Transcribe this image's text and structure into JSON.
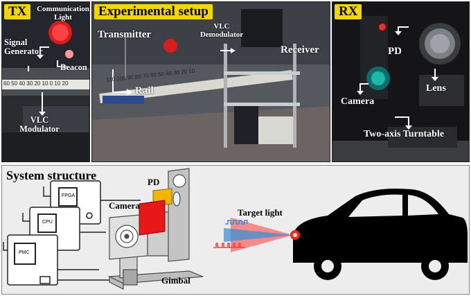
{
  "colors": {
    "tag_bg": "#f2d600",
    "target_light": "#ff2020",
    "signal_blue": "#2f8fd8",
    "signal_red": "#ff3b3b",
    "camera_red": "#e81818",
    "pd_yellow": "#f5b400"
  },
  "tx": {
    "tag": "TX",
    "communication_light": "Communication Light",
    "signal_generator": "Signal Generator",
    "beacon": "Beacon",
    "vlc_modulator": "VLC Modulator",
    "ruler_ticks": "60 50 40 30 20 10 0 10 20"
  },
  "setup": {
    "tag": "Experimental setup",
    "transmitter": "Transmitter",
    "vlc_demodulator": "VLC Demodulator",
    "receiver": "Receiver",
    "rail": "Rail",
    "ruler_ticks": "110 100 90 80 70 60 50 40 30 20 10"
  },
  "rx": {
    "tag": "RX",
    "pd": "PD",
    "lens": "Lens",
    "camera": "Camera",
    "turntable": "Two-axis Turntable"
  },
  "structure": {
    "title": "System structure",
    "pd": "PD",
    "camera": "Camera",
    "gimbal": "Gimbal",
    "target_light": "Target light",
    "board_fpga": "FPGA",
    "board_cpu": "CPU",
    "board_pmc": "PMC"
  }
}
